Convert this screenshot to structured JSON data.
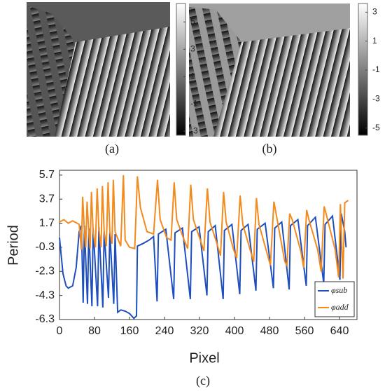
{
  "panels": [
    {
      "label": "(a)",
      "colorbar_lim": [
        -3.3,
        6.35
      ],
      "colorbar_ticks": [
        5,
        3,
        1,
        -1,
        -3
      ]
    },
    {
      "label": "(b)",
      "colorbar_lim": [
        -5.5,
        3.6
      ],
      "colorbar_ticks": [
        3,
        1,
        -1,
        -3,
        -5
      ]
    }
  ],
  "chart_data": {
    "type": "line",
    "label": "(c)",
    "x_label": "Pixel",
    "y_label": "Period",
    "xlim": [
      0,
      680
    ],
    "xticks": [
      0,
      80,
      160,
      240,
      320,
      400,
      480,
      560,
      640
    ],
    "ylim": [
      -6.3,
      6.1
    ],
    "yticks": [
      5.7,
      3.7,
      1.7,
      -0.3,
      -2.3,
      -4.3,
      -6.3
    ],
    "legend": "lower right",
    "series": [
      {
        "name": "φsub",
        "color": "#1f4fbf",
        "x": [
          0,
          8,
          15,
          20,
          30,
          38,
          45,
          50,
          54,
          57,
          64,
          67,
          74,
          77,
          87,
          90,
          99,
          102,
          112,
          115,
          124,
          127,
          133,
          140,
          150,
          160,
          170,
          176,
          178,
          190,
          205,
          215,
          223,
          226,
          243,
          261,
          264,
          281,
          299,
          302,
          319,
          337,
          340,
          356,
          374,
          377,
          394,
          412,
          415,
          431,
          449,
          452,
          470,
          489,
          492,
          508,
          525,
          528,
          545,
          564,
          567,
          585,
          604,
          607,
          624,
          641,
          644,
          652,
          655
        ],
        "values": [
          0.5,
          -2.5,
          -3.5,
          -3.7,
          -3.5,
          -2.0,
          1.0,
          1.5,
          -4.9,
          1.5,
          -5.0,
          1.3,
          -5.2,
          1.3,
          -5.2,
          1.4,
          -5.3,
          1.0,
          -4.5,
          1.0,
          -5.0,
          0.8,
          -5.7,
          -5.5,
          -5.6,
          -5.8,
          -6.2,
          -6.0,
          -0.2,
          0.0,
          0.3,
          0.6,
          -4.8,
          0.8,
          1.2,
          -4.6,
          0.9,
          1.3,
          -4.6,
          1.0,
          1.4,
          -4.3,
          1.0,
          1.5,
          -4.6,
          1.1,
          1.6,
          -4.2,
          1.1,
          1.6,
          -3.9,
          1.2,
          1.7,
          -3.7,
          1.3,
          1.8,
          -3.8,
          1.5,
          2.0,
          -3.5,
          1.5,
          2.2,
          -3.3,
          1.6,
          2.3,
          -3.0,
          2.5,
          1.0,
          -0.3
        ]
      },
      {
        "name": "φadd",
        "color": "#f28a1c",
        "x": [
          0,
          10,
          20,
          30,
          45,
          50,
          53,
          57,
          60,
          63,
          67,
          70,
          73,
          77,
          82,
          86,
          90,
          95,
          98,
          102,
          107,
          111,
          115,
          120,
          123,
          127,
          140,
          146,
          150,
          160,
          172,
          178,
          185,
          200,
          215,
          224,
          230,
          245,
          255,
          262,
          268,
          285,
          293,
          300,
          306,
          320,
          330,
          338,
          344,
          360,
          368,
          375,
          381,
          398,
          405,
          413,
          419,
          438,
          444,
          450,
          456,
          476,
          482,
          490,
          495,
          505,
          515,
          520,
          526,
          532,
          552,
          558,
          565,
          570,
          590,
          598,
          605,
          610,
          630,
          638,
          642,
          648,
          652,
          660
        ],
        "values": [
          1.8,
          2.0,
          1.7,
          1.9,
          1.6,
          -0.5,
          3.9,
          1.0,
          -0.3,
          3.5,
          0.9,
          -0.4,
          4.3,
          1.0,
          -0.3,
          4.6,
          1.2,
          -0.3,
          4.8,
          1.0,
          -0.2,
          5.1,
          1.0,
          0.0,
          5.3,
          1.0,
          -0.2,
          5.7,
          0.3,
          -0.3,
          -0.4,
          5.6,
          3.0,
          1.0,
          0.8,
          5.3,
          2.0,
          0.5,
          0.3,
          5.1,
          2.0,
          0.3,
          -0.4,
          4.9,
          2.0,
          0.5,
          -0.6,
          4.6,
          1.8,
          0.0,
          -1.0,
          4.3,
          1.8,
          -0.5,
          -1.2,
          4.0,
          1.6,
          -0.8,
          -1.5,
          3.8,
          1.6,
          -1.0,
          -1.8,
          3.5,
          2.5,
          0.5,
          -1.5,
          -1.8,
          2.5,
          2.0,
          -0.7,
          -2.0,
          2.8,
          2.0,
          -0.5,
          -2.3,
          3.1,
          2.4,
          -0.5,
          -2.8,
          3.3,
          -2.9,
          3.4,
          3.6
        ]
      }
    ]
  }
}
